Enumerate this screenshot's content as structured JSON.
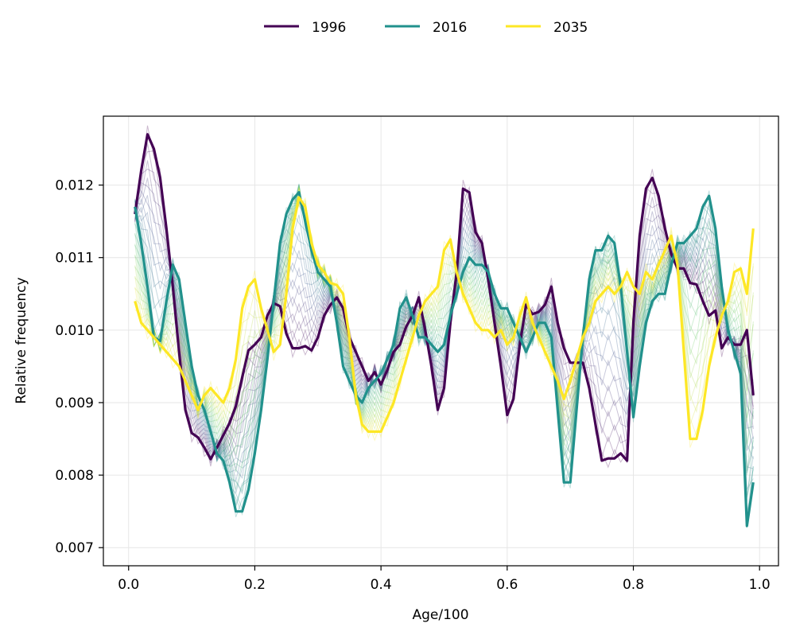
{
  "chart_data": {
    "type": "line",
    "xlabel": "Age/100",
    "ylabel": "Relative frequency",
    "xlim": [
      -0.04,
      1.03
    ],
    "ylim": [
      0.00675,
      0.01295
    ],
    "x_ticks": [
      0.0,
      0.2,
      0.4,
      0.6,
      0.8,
      1.0
    ],
    "x_tick_labels": [
      "0.0",
      "0.2",
      "0.4",
      "0.6",
      "0.8",
      "1.0"
    ],
    "y_ticks": [
      0.007,
      0.008,
      0.009,
      0.01,
      0.011,
      0.012
    ],
    "y_tick_labels": [
      "0.007",
      "0.008",
      "0.009",
      "0.010",
      "0.011",
      "0.012"
    ],
    "grid": true,
    "legend_position": "top-center",
    "x_range": [
      0.01,
      0.99
    ],
    "background_band": {
      "description": "semi-transparent wireframe of intermediate years, viridis colormap",
      "colors": [
        "#440154",
        "#3b528b",
        "#21918c",
        "#5ec962",
        "#fde725"
      ]
    },
    "series": [
      {
        "name": "1996",
        "color": "#440154",
        "points": [
          [
            0.01,
            0.0116
          ],
          [
            0.02,
            0.0122
          ],
          [
            0.03,
            0.0127
          ],
          [
            0.04,
            0.0125
          ],
          [
            0.05,
            0.0121
          ],
          [
            0.06,
            0.0114
          ],
          [
            0.07,
            0.0106
          ],
          [
            0.08,
            0.0097
          ],
          [
            0.09,
            0.0089
          ],
          [
            0.1,
            0.00858
          ],
          [
            0.11,
            0.00852
          ],
          [
            0.12,
            0.00838
          ],
          [
            0.13,
            0.00822
          ],
          [
            0.14,
            0.00838
          ],
          [
            0.15,
            0.00855
          ],
          [
            0.16,
            0.00872
          ],
          [
            0.17,
            0.00895
          ],
          [
            0.18,
            0.00935
          ],
          [
            0.19,
            0.00972
          ],
          [
            0.2,
            0.0098
          ],
          [
            0.21,
            0.0099
          ],
          [
            0.22,
            0.0102
          ],
          [
            0.23,
            0.01037
          ],
          [
            0.24,
            0.01033
          ],
          [
            0.25,
            0.00995
          ],
          [
            0.26,
            0.00975
          ],
          [
            0.27,
            0.00975
          ],
          [
            0.28,
            0.00978
          ],
          [
            0.29,
            0.00972
          ],
          [
            0.3,
            0.0099
          ],
          [
            0.31,
            0.0102
          ],
          [
            0.32,
            0.01035
          ],
          [
            0.33,
            0.01045
          ],
          [
            0.34,
            0.0103
          ],
          [
            0.35,
            0.0099
          ],
          [
            0.36,
            0.0097
          ],
          [
            0.37,
            0.0095
          ],
          [
            0.38,
            0.0093
          ],
          [
            0.39,
            0.00942
          ],
          [
            0.4,
            0.00925
          ],
          [
            0.41,
            0.00945
          ],
          [
            0.42,
            0.0097
          ],
          [
            0.43,
            0.0098
          ],
          [
            0.44,
            0.01005
          ],
          [
            0.45,
            0.0102
          ],
          [
            0.46,
            0.01045
          ],
          [
            0.47,
            0.01
          ],
          [
            0.48,
            0.0095
          ],
          [
            0.49,
            0.0089
          ],
          [
            0.5,
            0.0092
          ],
          [
            0.51,
            0.0101
          ],
          [
            0.52,
            0.0108
          ],
          [
            0.53,
            0.01195
          ],
          [
            0.54,
            0.0119
          ],
          [
            0.55,
            0.01135
          ],
          [
            0.56,
            0.0112
          ],
          [
            0.57,
            0.0107
          ],
          [
            0.58,
            0.0101
          ],
          [
            0.59,
            0.0095
          ],
          [
            0.6,
            0.00883
          ],
          [
            0.61,
            0.00905
          ],
          [
            0.62,
            0.0098
          ],
          [
            0.63,
            0.01035
          ],
          [
            0.64,
            0.01022
          ],
          [
            0.65,
            0.01025
          ],
          [
            0.66,
            0.01035
          ],
          [
            0.67,
            0.0106
          ],
          [
            0.68,
            0.0101
          ],
          [
            0.69,
            0.00975
          ],
          [
            0.7,
            0.00955
          ],
          [
            0.71,
            0.00955
          ],
          [
            0.72,
            0.00955
          ],
          [
            0.73,
            0.0092
          ],
          [
            0.74,
            0.0087
          ],
          [
            0.75,
            0.0082
          ],
          [
            0.76,
            0.00823
          ],
          [
            0.77,
            0.00823
          ],
          [
            0.78,
            0.0083
          ],
          [
            0.79,
            0.0082
          ],
          [
            0.8,
            0.0101
          ],
          [
            0.81,
            0.0113
          ],
          [
            0.82,
            0.01195
          ],
          [
            0.83,
            0.0121
          ],
          [
            0.84,
            0.01185
          ],
          [
            0.85,
            0.0114
          ],
          [
            0.86,
            0.01105
          ],
          [
            0.87,
            0.01085
          ],
          [
            0.88,
            0.01085
          ],
          [
            0.89,
            0.01065
          ],
          [
            0.9,
            0.01063
          ],
          [
            0.91,
            0.0104
          ],
          [
            0.92,
            0.0102
          ],
          [
            0.93,
            0.01027
          ],
          [
            0.94,
            0.00975
          ],
          [
            0.95,
            0.0099
          ],
          [
            0.96,
            0.0098
          ],
          [
            0.97,
            0.0098
          ],
          [
            0.98,
            0.01
          ],
          [
            0.99,
            0.0091
          ]
        ]
      },
      {
        "name": "2016",
        "color": "#21918c",
        "points": [
          [
            0.01,
            0.0117
          ],
          [
            0.02,
            0.0112
          ],
          [
            0.03,
            0.0106
          ],
          [
            0.04,
            0.0099
          ],
          [
            0.05,
            0.00985
          ],
          [
            0.06,
            0.0104
          ],
          [
            0.07,
            0.0109
          ],
          [
            0.08,
            0.0107
          ],
          [
            0.09,
            0.0101
          ],
          [
            0.1,
            0.0095
          ],
          [
            0.11,
            0.0091
          ],
          [
            0.12,
            0.0089
          ],
          [
            0.13,
            0.0086
          ],
          [
            0.14,
            0.0083
          ],
          [
            0.15,
            0.0082
          ],
          [
            0.16,
            0.0079
          ],
          [
            0.17,
            0.0075
          ],
          [
            0.18,
            0.0075
          ],
          [
            0.19,
            0.0078
          ],
          [
            0.2,
            0.0083
          ],
          [
            0.21,
            0.0089
          ],
          [
            0.22,
            0.0096
          ],
          [
            0.23,
            0.0104
          ],
          [
            0.24,
            0.0112
          ],
          [
            0.25,
            0.0116
          ],
          [
            0.26,
            0.0118
          ],
          [
            0.27,
            0.0119
          ],
          [
            0.28,
            0.0115
          ],
          [
            0.29,
            0.0111
          ],
          [
            0.3,
            0.0108
          ],
          [
            0.31,
            0.0107
          ],
          [
            0.32,
            0.0106
          ],
          [
            0.33,
            0.0101
          ],
          [
            0.34,
            0.0095
          ],
          [
            0.35,
            0.0093
          ],
          [
            0.36,
            0.0091
          ],
          [
            0.37,
            0.009
          ],
          [
            0.38,
            0.0092
          ],
          [
            0.39,
            0.0093
          ],
          [
            0.4,
            0.0094
          ],
          [
            0.41,
            0.0096
          ],
          [
            0.42,
            0.0098
          ],
          [
            0.43,
            0.0103
          ],
          [
            0.44,
            0.01045
          ],
          [
            0.45,
            0.0102
          ],
          [
            0.46,
            0.0099
          ],
          [
            0.47,
            0.0099
          ],
          [
            0.48,
            0.0098
          ],
          [
            0.49,
            0.0097
          ],
          [
            0.5,
            0.0098
          ],
          [
            0.51,
            0.0102
          ],
          [
            0.52,
            0.0105
          ],
          [
            0.53,
            0.0108
          ],
          [
            0.54,
            0.011
          ],
          [
            0.55,
            0.0109
          ],
          [
            0.56,
            0.0109
          ],
          [
            0.57,
            0.0108
          ],
          [
            0.58,
            0.0105
          ],
          [
            0.59,
            0.0103
          ],
          [
            0.6,
            0.0103
          ],
          [
            0.61,
            0.0101
          ],
          [
            0.62,
            0.0099
          ],
          [
            0.63,
            0.0097
          ],
          [
            0.64,
            0.0099
          ],
          [
            0.65,
            0.0101
          ],
          [
            0.66,
            0.0101
          ],
          [
            0.67,
            0.0099
          ],
          [
            0.68,
            0.0089
          ],
          [
            0.69,
            0.0079
          ],
          [
            0.7,
            0.0079
          ],
          [
            0.71,
            0.0089
          ],
          [
            0.72,
            0.0099
          ],
          [
            0.73,
            0.0107
          ],
          [
            0.74,
            0.0111
          ],
          [
            0.75,
            0.0111
          ],
          [
            0.76,
            0.0113
          ],
          [
            0.77,
            0.0112
          ],
          [
            0.78,
            0.0106
          ],
          [
            0.79,
            0.0097
          ],
          [
            0.8,
            0.0088
          ],
          [
            0.81,
            0.0095
          ],
          [
            0.82,
            0.0101
          ],
          [
            0.83,
            0.0104
          ],
          [
            0.84,
            0.0105
          ],
          [
            0.85,
            0.0105
          ],
          [
            0.86,
            0.0109
          ],
          [
            0.87,
            0.0112
          ],
          [
            0.88,
            0.0112
          ],
          [
            0.89,
            0.0113
          ],
          [
            0.9,
            0.0114
          ],
          [
            0.91,
            0.0117
          ],
          [
            0.92,
            0.01185
          ],
          [
            0.93,
            0.0114
          ],
          [
            0.94,
            0.0106
          ],
          [
            0.95,
            0.01
          ],
          [
            0.96,
            0.0097
          ],
          [
            0.97,
            0.0094
          ],
          [
            0.98,
            0.0073
          ],
          [
            0.99,
            0.0079
          ]
        ]
      },
      {
        "name": "2035",
        "color": "#fde725",
        "points": [
          [
            0.01,
            0.0104
          ],
          [
            0.02,
            0.0101
          ],
          [
            0.03,
            0.01
          ],
          [
            0.04,
            0.0099
          ],
          [
            0.05,
            0.0098
          ],
          [
            0.06,
            0.0097
          ],
          [
            0.07,
            0.0096
          ],
          [
            0.08,
            0.0095
          ],
          [
            0.09,
            0.0093
          ],
          [
            0.1,
            0.0091
          ],
          [
            0.11,
            0.0089
          ],
          [
            0.12,
            0.0091
          ],
          [
            0.13,
            0.0092
          ],
          [
            0.14,
            0.0091
          ],
          [
            0.15,
            0.009
          ],
          [
            0.16,
            0.0092
          ],
          [
            0.17,
            0.0096
          ],
          [
            0.18,
            0.0103
          ],
          [
            0.19,
            0.0106
          ],
          [
            0.2,
            0.0107
          ],
          [
            0.21,
            0.0103
          ],
          [
            0.22,
            0.01
          ],
          [
            0.23,
            0.0097
          ],
          [
            0.24,
            0.0098
          ],
          [
            0.25,
            0.0105
          ],
          [
            0.26,
            0.0114
          ],
          [
            0.27,
            0.01183
          ],
          [
            0.28,
            0.0117
          ],
          [
            0.29,
            0.0112
          ],
          [
            0.3,
            0.0109
          ],
          [
            0.31,
            0.0108
          ],
          [
            0.32,
            0.01065
          ],
          [
            0.33,
            0.01062
          ],
          [
            0.34,
            0.0105
          ],
          [
            0.35,
            0.0099
          ],
          [
            0.36,
            0.0091
          ],
          [
            0.37,
            0.0087
          ],
          [
            0.38,
            0.0086
          ],
          [
            0.39,
            0.0086
          ],
          [
            0.4,
            0.0086
          ],
          [
            0.41,
            0.0088
          ],
          [
            0.42,
            0.009
          ],
          [
            0.43,
            0.0093
          ],
          [
            0.44,
            0.0096
          ],
          [
            0.45,
            0.0099
          ],
          [
            0.46,
            0.0102
          ],
          [
            0.47,
            0.0104
          ],
          [
            0.48,
            0.0105
          ],
          [
            0.49,
            0.0106
          ],
          [
            0.5,
            0.0111
          ],
          [
            0.51,
            0.01125
          ],
          [
            0.52,
            0.0108
          ],
          [
            0.53,
            0.0105
          ],
          [
            0.54,
            0.0103
          ],
          [
            0.55,
            0.0101
          ],
          [
            0.56,
            0.01
          ],
          [
            0.57,
            0.01
          ],
          [
            0.58,
            0.0099
          ],
          [
            0.59,
            0.01
          ],
          [
            0.6,
            0.0098
          ],
          [
            0.61,
            0.0099
          ],
          [
            0.62,
            0.0102
          ],
          [
            0.63,
            0.01045
          ],
          [
            0.64,
            0.0101
          ],
          [
            0.65,
            0.0099
          ],
          [
            0.66,
            0.0097
          ],
          [
            0.67,
            0.0095
          ],
          [
            0.68,
            0.0093
          ],
          [
            0.69,
            0.00905
          ],
          [
            0.7,
            0.0093
          ],
          [
            0.71,
            0.0096
          ],
          [
            0.72,
            0.0099
          ],
          [
            0.73,
            0.0101
          ],
          [
            0.74,
            0.0104
          ],
          [
            0.75,
            0.0105
          ],
          [
            0.76,
            0.0106
          ],
          [
            0.77,
            0.0105
          ],
          [
            0.78,
            0.0106
          ],
          [
            0.79,
            0.0108
          ],
          [
            0.8,
            0.0106
          ],
          [
            0.81,
            0.0105
          ],
          [
            0.82,
            0.0108
          ],
          [
            0.83,
            0.0107
          ],
          [
            0.84,
            0.0109
          ],
          [
            0.85,
            0.0111
          ],
          [
            0.86,
            0.0113
          ],
          [
            0.87,
            0.0109
          ],
          [
            0.88,
            0.0097
          ],
          [
            0.89,
            0.0085
          ],
          [
            0.9,
            0.0085
          ],
          [
            0.91,
            0.0089
          ],
          [
            0.92,
            0.0095
          ],
          [
            0.93,
            0.0099
          ],
          [
            0.94,
            0.0102
          ],
          [
            0.95,
            0.0104
          ],
          [
            0.96,
            0.0108
          ],
          [
            0.97,
            0.01085
          ],
          [
            0.98,
            0.0105
          ],
          [
            0.99,
            0.0114
          ]
        ]
      }
    ]
  }
}
